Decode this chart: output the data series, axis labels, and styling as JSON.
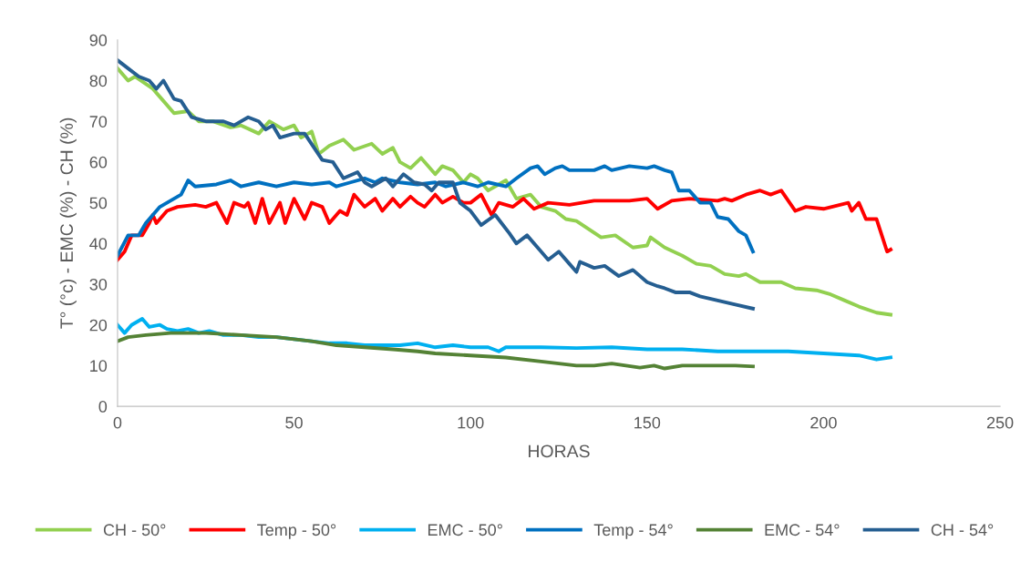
{
  "chart_data": {
    "type": "line",
    "xlabel": "HORAS",
    "ylabel": "T° (°c) - EMC (%) - CH (%)",
    "xlim": [
      0,
      250
    ],
    "xticks": [
      0,
      50,
      100,
      150,
      200,
      250
    ],
    "ylim": [
      0,
      90
    ],
    "yticks": [
      0,
      10,
      20,
      30,
      40,
      50,
      60,
      70,
      80,
      90
    ],
    "grid": false,
    "legend": "bottom",
    "marker": "none",
    "line_style": "solid",
    "series": [
      {
        "name": "CH - 50°",
        "color": "#92d050",
        "x": [
          0,
          3,
          5,
          10,
          12,
          16,
          20,
          23,
          27,
          32,
          35,
          40,
          43,
          47,
          50,
          52,
          55,
          57,
          60,
          64,
          67,
          72,
          75,
          78,
          80,
          83,
          86,
          90,
          92,
          95,
          98,
          100,
          102,
          105,
          110,
          113,
          117,
          120,
          124,
          127,
          130,
          137,
          141,
          146,
          150,
          151,
          155,
          160,
          164,
          168,
          172,
          176,
          178,
          182,
          188,
          192,
          198,
          202,
          206,
          210,
          215,
          219
        ],
        "values": [
          83,
          80,
          81,
          78,
          76,
          72,
          72.5,
          70,
          70,
          68.5,
          69,
          67,
          70,
          68,
          69,
          66,
          67.5,
          62,
          64,
          65.5,
          63,
          64.5,
          62,
          63.5,
          60,
          58.5,
          61,
          57,
          59,
          58,
          55,
          57,
          56,
          53,
          55.5,
          51,
          52,
          49,
          48,
          46,
          45.5,
          41.5,
          42,
          39,
          39.5,
          41.5,
          39,
          37,
          35,
          34.5,
          32.5,
          32,
          32.5,
          30.5,
          30.5,
          29,
          28.5,
          27.5,
          26,
          24.5,
          23,
          22.5
        ]
      },
      {
        "name": "Temp - 50°",
        "color": "#ff0000",
        "x": [
          0,
          2,
          4,
          7,
          9,
          10,
          11,
          14,
          17,
          22,
          25,
          28,
          31,
          33,
          36,
          37,
          39,
          41,
          43,
          46,
          47.5,
          50,
          53,
          55,
          58,
          60,
          63,
          65,
          67,
          70,
          73,
          75,
          78,
          80,
          83,
          85,
          87,
          90,
          92,
          95,
          98,
          100,
          103,
          106,
          108,
          112,
          115,
          118,
          122,
          128,
          135,
          145,
          150,
          153,
          157,
          162,
          170,
          172,
          174,
          178,
          182,
          185,
          188,
          192,
          195,
          200,
          207,
          208,
          210,
          212,
          215,
          218,
          219
        ],
        "values": [
          36,
          38,
          42,
          42,
          45,
          47,
          45,
          48,
          49,
          49.5,
          49,
          50,
          45,
          50,
          49,
          50,
          45,
          51,
          45,
          50,
          45,
          51,
          46,
          50,
          49,
          45,
          48,
          47,
          52,
          49,
          51,
          48,
          51,
          49,
          51.5,
          50,
          49,
          52,
          50,
          51.5,
          50,
          50,
          52,
          47,
          50,
          49,
          51,
          48.5,
          50,
          49.5,
          50.5,
          50.5,
          51,
          48.5,
          50.5,
          51,
          50.5,
          51,
          50.5,
          52,
          53,
          52,
          53,
          48,
          49,
          48.5,
          50,
          48,
          50,
          46,
          46,
          38,
          38.5
        ]
      },
      {
        "name": "EMC - 50°",
        "color": "#00b0f0",
        "x": [
          0,
          2,
          4,
          7,
          9,
          12,
          14,
          17,
          20,
          23,
          26,
          30,
          35,
          40,
          45,
          50,
          55,
          60,
          65,
          70,
          75,
          80,
          85,
          90,
          95,
          100,
          105,
          108,
          110,
          120,
          130,
          140,
          150,
          160,
          170,
          180,
          190,
          200,
          210,
          215,
          219
        ],
        "values": [
          20,
          18,
          20,
          21.5,
          19.5,
          20,
          19,
          18.5,
          19,
          18,
          18.5,
          17.5,
          17.5,
          17,
          17,
          16.5,
          16,
          15.5,
          15.5,
          15,
          15,
          15,
          15.5,
          14.5,
          15,
          14.5,
          14.5,
          13.5,
          14.5,
          14.5,
          14.3,
          14.5,
          14,
          14,
          13.5,
          13.5,
          13.5,
          13,
          12.5,
          11.5,
          12
        ]
      },
      {
        "name": "Temp - 54°",
        "color": "#0070c0",
        "x": [
          0,
          3,
          6,
          8,
          12,
          18,
          20,
          22,
          28,
          32,
          35,
          40,
          45,
          50,
          55,
          60,
          62,
          66,
          70,
          73,
          75,
          80,
          85,
          90,
          93,
          98,
          102,
          105,
          110,
          113,
          117,
          119,
          121,
          124,
          126,
          128,
          135,
          138,
          140,
          145,
          150,
          152,
          155,
          157,
          159,
          162,
          165,
          168,
          170,
          173,
          176,
          178,
          180
        ],
        "values": [
          37,
          42,
          42,
          45,
          49,
          52,
          55.5,
          54,
          54.5,
          55.5,
          54,
          55,
          54,
          55,
          54.5,
          55,
          54,
          55,
          56,
          55,
          56,
          55,
          54.5,
          55,
          54,
          55,
          54,
          55,
          54,
          56,
          58.5,
          59,
          57,
          58.5,
          59,
          58,
          58,
          59,
          58,
          59,
          58.5,
          59,
          58,
          57.5,
          53,
          53,
          50,
          50,
          46.5,
          46,
          43,
          42,
          38
        ]
      },
      {
        "name": "EMC - 54°",
        "color": "#548235",
        "x": [
          0,
          3,
          8,
          15,
          25,
          35,
          45,
          55,
          62,
          70,
          78,
          85,
          90,
          100,
          110,
          120,
          125,
          130,
          135,
          140,
          148,
          152,
          155,
          160,
          170,
          175,
          180
        ],
        "values": [
          16,
          17,
          17.5,
          18,
          18,
          17.5,
          17,
          16,
          15,
          14.5,
          14,
          13.5,
          13,
          12.5,
          12,
          11,
          10.5,
          10,
          10,
          10.5,
          9.5,
          10,
          9.3,
          10,
          10,
          10,
          9.8
        ]
      },
      {
        "name": "CH - 54°",
        "color": "#255e91",
        "x": [
          0,
          3,
          6,
          9,
          11,
          13,
          16,
          18,
          21,
          25,
          30,
          33,
          37,
          40,
          42,
          44,
          46,
          50,
          53,
          58,
          61,
          64,
          68,
          70,
          72,
          76,
          78,
          81,
          84,
          87,
          89,
          91,
          95,
          97,
          100,
          103,
          107,
          111,
          113,
          116,
          120,
          122,
          125,
          128,
          130,
          131,
          135,
          138,
          142,
          146,
          150,
          153,
          155,
          158,
          162,
          165,
          170,
          175,
          180
        ],
        "values": [
          85,
          83,
          81,
          80,
          78,
          80,
          75.5,
          75,
          71,
          70,
          70,
          69,
          71,
          70,
          68,
          69,
          66,
          67,
          67,
          60.5,
          60,
          56,
          57.5,
          55,
          54,
          56,
          54,
          57,
          55,
          54.5,
          53,
          55,
          55,
          50,
          48,
          44.5,
          47,
          42.5,
          40,
          42,
          38,
          36,
          38,
          35,
          33,
          35.5,
          34,
          34.5,
          32,
          33.5,
          30.5,
          29.5,
          29,
          28,
          28,
          27,
          26,
          25,
          24
        ]
      }
    ]
  }
}
